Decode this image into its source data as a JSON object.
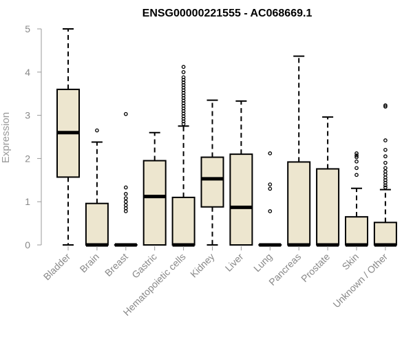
{
  "chart_data": {
    "type": "box",
    "title": "ENSG00000221555 - AC068669.1",
    "ylabel": "Expression",
    "xlabel": "",
    "ylim": [
      0,
      5
    ],
    "yticks": [
      0,
      1,
      2,
      3,
      4,
      5
    ],
    "box_color": "#ede6cf",
    "categories": [
      "Bladder",
      "Brain",
      "Breast",
      "Gastric",
      "Hematopoietic cells",
      "Kidney",
      "Liver",
      "Lung",
      "Pancreas",
      "Prostate",
      "Skin",
      "Unknown / Other"
    ],
    "boxes": [
      {
        "min": 0,
        "q1": 1.57,
        "median": 2.6,
        "q3": 3.6,
        "max": 5.0,
        "outliers": []
      },
      {
        "min": 0,
        "q1": 0,
        "median": 0,
        "q3": 0.96,
        "max": 2.38,
        "outliers": [
          2.65
        ]
      },
      {
        "min": 0,
        "q1": 0,
        "median": 0,
        "q3": 0,
        "max": 0,
        "outliers": [
          0.78,
          0.85,
          0.92,
          1.0,
          1.08,
          1.18,
          1.33,
          3.03
        ]
      },
      {
        "min": 0,
        "q1": 0,
        "median": 1.12,
        "q3": 1.95,
        "max": 2.6,
        "outliers": []
      },
      {
        "min": 0,
        "q1": 0,
        "median": 0,
        "q3": 1.1,
        "max": 2.75,
        "outliers": [
          2.8,
          2.86,
          2.92,
          2.98,
          3.04,
          3.1,
          3.16,
          3.22,
          3.28,
          3.34,
          3.4,
          3.46,
          3.52,
          3.58,
          3.64,
          3.7,
          3.76,
          3.82,
          3.88,
          4.0,
          4.12
        ]
      },
      {
        "min": 0,
        "q1": 0.88,
        "median": 1.53,
        "q3": 2.03,
        "max": 3.35,
        "outliers": []
      },
      {
        "min": 0,
        "q1": 0,
        "median": 0.87,
        "q3": 2.1,
        "max": 3.33,
        "outliers": []
      },
      {
        "min": 0,
        "q1": 0,
        "median": 0,
        "q3": 0,
        "max": 0,
        "outliers": [
          0.78,
          1.3,
          1.4,
          2.12
        ]
      },
      {
        "min": 0,
        "q1": 0,
        "median": 0,
        "q3": 1.92,
        "max": 4.37,
        "outliers": []
      },
      {
        "min": 0,
        "q1": 0,
        "median": 0,
        "q3": 1.76,
        "max": 2.96,
        "outliers": []
      },
      {
        "min": 0,
        "q1": 0,
        "median": 0,
        "q3": 0.65,
        "max": 1.31,
        "outliers": [
          1.62,
          1.78,
          1.93,
          2.03,
          2.07,
          2.12
        ]
      },
      {
        "min": 0,
        "q1": 0,
        "median": 0,
        "q3": 0.52,
        "max": 1.28,
        "outliers": [
          1.33,
          1.38,
          1.44,
          1.5,
          1.56,
          1.63,
          1.7,
          1.78,
          1.9,
          2.05,
          2.2,
          2.42,
          3.2,
          3.23
        ]
      }
    ]
  }
}
